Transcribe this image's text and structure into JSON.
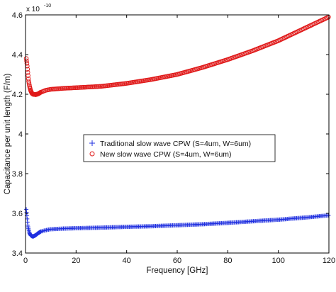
{
  "chart_data": {
    "type": "scatter",
    "title": "",
    "xlabel": "Frequency [GHz]",
    "ylabel": "Capacitance per unit length (F/m)",
    "exponent_base": "x 10",
    "exponent_power": "-10",
    "xlim": [
      0,
      120
    ],
    "ylim": [
      3.4,
      4.6
    ],
    "xticks": [
      0,
      20,
      40,
      60,
      80,
      100,
      120
    ],
    "yticks": [
      3.4,
      3.6,
      3.8,
      4.0,
      4.2,
      4.4,
      4.6
    ],
    "xtick_labels": [
      "0",
      "20",
      "40",
      "60",
      "80",
      "100",
      "120"
    ],
    "ytick_labels": [
      "3.4",
      "3.6",
      "3.8",
      "4",
      "4.2",
      "4.4",
      "4.6"
    ],
    "grid": false,
    "legend_position": "center",
    "series": [
      {
        "name": "Traditional slow wave CPW (S=4um, W=6um)",
        "marker": "+",
        "color": "#1f2fe0",
        "x": [
          0.3,
          0.6,
          0.9,
          1.2,
          1.6,
          2.0,
          2.5,
          3,
          4,
          5,
          6,
          8,
          10,
          15,
          20,
          30,
          40,
          50,
          60,
          70,
          80,
          90,
          100,
          110,
          120
        ],
        "y": [
          3.62,
          3.58,
          3.54,
          3.52,
          3.5,
          3.49,
          3.485,
          3.483,
          3.49,
          3.5,
          3.508,
          3.515,
          3.52,
          3.523,
          3.525,
          3.528,
          3.532,
          3.535,
          3.54,
          3.545,
          3.552,
          3.56,
          3.568,
          3.578,
          3.59
        ]
      },
      {
        "name": "New slow wave CPW (S=4um, W=6um)",
        "marker": "o",
        "color": "#e01a1a",
        "x": [
          0.3,
          0.6,
          0.9,
          1.2,
          1.6,
          2.0,
          2.5,
          3,
          4,
          5,
          6,
          8,
          10,
          15,
          20,
          30,
          40,
          50,
          60,
          70,
          80,
          90,
          100,
          110,
          120
        ],
        "y": [
          4.38,
          4.35,
          4.31,
          4.27,
          4.24,
          4.22,
          4.205,
          4.2,
          4.198,
          4.202,
          4.21,
          4.22,
          4.225,
          4.23,
          4.233,
          4.24,
          4.255,
          4.275,
          4.3,
          4.335,
          4.375,
          4.42,
          4.47,
          4.53,
          4.59
        ]
      }
    ]
  }
}
